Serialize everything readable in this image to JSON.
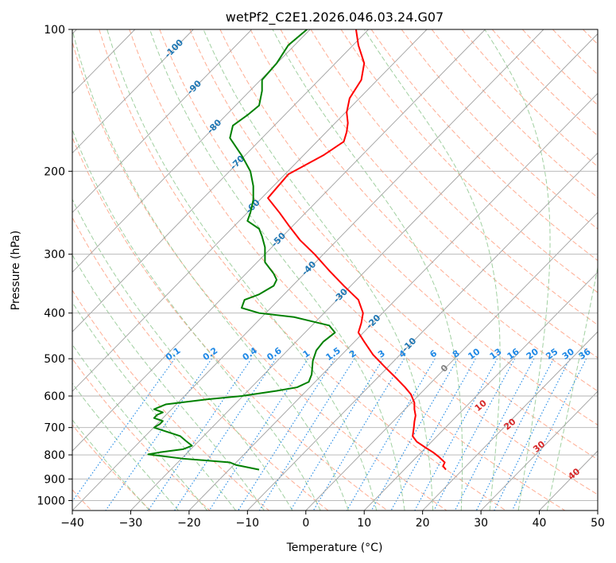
{
  "chart_data": {
    "type": "line",
    "title": "wetPf2_C2E1.2026.046.03.24.G07",
    "xlabel": "Temperature (°C)",
    "ylabel": "Pressure (hPa)",
    "xlim": [
      -40,
      50
    ],
    "ylim": [
      1050,
      100
    ],
    "y_scale": "log",
    "x_ticks": [
      -40,
      -30,
      -20,
      -10,
      0,
      10,
      20,
      30,
      40,
      50
    ],
    "y_ticks": [
      100,
      200,
      300,
      400,
      500,
      600,
      700,
      800,
      900,
      1000
    ],
    "grid": true,
    "colors": {
      "temperature": "#ff0000",
      "dewpoint": "#008000",
      "isotherm": "#a0a0a0",
      "dry_adiabat": "#ff9f80",
      "moist_adiabat": "#90c890",
      "mixing_ratio": "#1e88e5",
      "isotherm_label": "#1f77b4",
      "dry_adiabat_label": "#d62728",
      "zero_label": "#808080"
    },
    "series": [
      {
        "name": "",
        "role": "temperature",
        "points": [
          [
            24.0,
            860
          ],
          [
            23.5,
            845
          ],
          [
            23.8,
            830
          ],
          [
            22.8,
            808
          ],
          [
            21.8,
            790
          ],
          [
            20.5,
            772
          ],
          [
            19.0,
            750
          ],
          [
            18.3,
            730
          ],
          [
            18.5,
            700
          ],
          [
            18.6,
            680
          ],
          [
            18.8,
            660
          ],
          [
            18.6,
            640
          ],
          [
            18.6,
            620
          ],
          [
            18.0,
            595
          ],
          [
            17.0,
            575
          ],
          [
            15.5,
            550
          ],
          [
            13.5,
            520
          ],
          [
            11.5,
            490
          ],
          [
            10.0,
            460
          ],
          [
            9.0,
            440
          ],
          [
            9.5,
            420
          ],
          [
            9.8,
            400
          ],
          [
            9.0,
            375
          ],
          [
            6.5,
            350
          ],
          [
            4.0,
            325
          ],
          [
            1.5,
            300
          ],
          [
            -1.0,
            280
          ],
          [
            -3.0,
            260
          ],
          [
            -4.5,
            245
          ],
          [
            -6.5,
            228
          ],
          [
            -3.0,
            203
          ],
          [
            3.0,
            185
          ],
          [
            6.5,
            173
          ],
          [
            7.0,
            165
          ],
          [
            7.2,
            158
          ],
          [
            7.0,
            150
          ],
          [
            7.5,
            140
          ],
          [
            9.5,
            128
          ],
          [
            10.0,
            118
          ],
          [
            9.0,
            108
          ],
          [
            8.6,
            100
          ]
        ]
      },
      {
        "name": "",
        "role": "dewpoint",
        "points": [
          [
            -8.0,
            860
          ],
          [
            -12.0,
            840
          ],
          [
            -13.0,
            830
          ],
          [
            -21.0,
            815
          ],
          [
            -27.0,
            798
          ],
          [
            -25.0,
            790
          ],
          [
            -21.0,
            778
          ],
          [
            -19.5,
            765
          ],
          [
            -20.5,
            748
          ],
          [
            -21.5,
            730
          ],
          [
            -26.0,
            700
          ],
          [
            -25.0,
            688
          ],
          [
            -24.5,
            678
          ],
          [
            -26.0,
            668
          ],
          [
            -25.5,
            658
          ],
          [
            -24.5,
            650
          ],
          [
            -26.0,
            640
          ],
          [
            -24.0,
            625
          ],
          [
            -17.0,
            610
          ],
          [
            -11.0,
            600
          ],
          [
            -5.0,
            585
          ],
          [
            -1.5,
            575
          ],
          [
            0.5,
            560
          ],
          [
            1.0,
            540
          ],
          [
            1.2,
            505
          ],
          [
            1.8,
            480
          ],
          [
            3.0,
            460
          ],
          [
            5.0,
            440
          ],
          [
            4.0,
            425
          ],
          [
            -2.0,
            408
          ],
          [
            -8.0,
            400
          ],
          [
            -11.0,
            390
          ],
          [
            -10.5,
            375
          ],
          [
            -8.0,
            365
          ],
          [
            -5.5,
            350
          ],
          [
            -5.0,
            340
          ],
          [
            -5.5,
            330
          ],
          [
            -7.0,
            312
          ],
          [
            -7.0,
            290
          ],
          [
            -7.5,
            275
          ],
          [
            -8.0,
            265
          ],
          [
            -9.0,
            260
          ],
          [
            -10.0,
            255
          ],
          [
            -9.5,
            245
          ],
          [
            -9.0,
            230
          ],
          [
            -9.0,
            215
          ],
          [
            -9.5,
            200
          ],
          [
            -11.0,
            185
          ],
          [
            -13.0,
            170
          ],
          [
            -12.5,
            160
          ],
          [
            -10.0,
            152
          ],
          [
            -8.0,
            145
          ],
          [
            -7.5,
            135
          ],
          [
            -7.5,
            128
          ],
          [
            -5.0,
            118
          ],
          [
            -3.0,
            108
          ],
          [
            0.2,
            100
          ]
        ]
      }
    ],
    "isotherm_labels": [
      "-100",
      "-90",
      "-80",
      "-70",
      "-60",
      "-50",
      "-40",
      "-30",
      "-20",
      "-10",
      "0"
    ],
    "isotherm_label_values": [
      -100,
      -90,
      -80,
      -70,
      -60,
      -50,
      -40,
      -30,
      -20,
      -10,
      0
    ],
    "isotherm_label_pressures": [
      110,
      133,
      161,
      192,
      238,
      280,
      322,
      368,
      418,
      468,
      525
    ],
    "dry_adiabat_labels": [
      "10",
      "20",
      "30",
      "40"
    ],
    "dry_adiabat_label_x": [
      30,
      35,
      40,
      46
    ],
    "dry_adiabat_label_pressures": [
      630,
      690,
      770,
      880
    ],
    "mixing_ratio_labels": [
      "0.1",
      "0.2",
      "0.4",
      "0.6",
      "1",
      "1.5",
      "2",
      "3",
      "4",
      "6",
      "8",
      "10",
      "13",
      "16",
      "20",
      "25",
      "30",
      "36"
    ],
    "mixing_ratio_values": [
      0.1,
      0.2,
      0.4,
      0.6,
      1,
      1.5,
      2,
      3,
      4,
      6,
      8,
      10,
      13,
      16,
      20,
      25,
      30,
      36
    ],
    "mixing_ratio_label_pressure": 500
  }
}
